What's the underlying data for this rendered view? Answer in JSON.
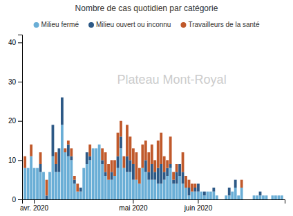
{
  "chart_data": {
    "type": "bar",
    "stacked": true,
    "title": "Nombre de cas quotidien par catégorie",
    "subtitle": "Plateau Mont-Royal",
    "legend": "top",
    "grid": false,
    "categories": [
      null,
      null,
      null,
      "avr. 2020",
      null,
      null,
      null,
      null,
      null,
      null,
      null,
      null,
      null,
      null,
      null,
      null,
      null,
      null,
      null,
      null,
      null,
      null,
      null,
      null,
      null,
      null,
      null,
      null,
      null,
      null,
      null,
      null,
      null,
      null,
      null,
      "mai 2020",
      null,
      null,
      null,
      null,
      null,
      null,
      null,
      null,
      null,
      null,
      null,
      null,
      null,
      null,
      null,
      null,
      null,
      null,
      null,
      null,
      "juin 2020",
      null,
      null,
      null,
      null,
      null,
      null,
      null,
      null,
      null,
      null,
      null,
      null,
      null,
      null,
      null,
      null,
      null,
      null,
      null,
      null,
      null,
      null,
      null,
      null,
      null,
      null,
      null
    ],
    "ylim": [
      0,
      42
    ],
    "yticks": [
      0,
      10,
      20,
      30,
      40
    ],
    "series": [
      {
        "name": "Milieu fermé",
        "color": "#6aaed6",
        "values": [
          8,
          8,
          11,
          8,
          8,
          7,
          7,
          0,
          7,
          11,
          7,
          7,
          19,
          12,
          11,
          10,
          4,
          2,
          2,
          8,
          9,
          10,
          13,
          13,
          14,
          9,
          6,
          5,
          5,
          6,
          8,
          13,
          8,
          7,
          7,
          5,
          5,
          4,
          8,
          7,
          5,
          5,
          5,
          4,
          4,
          5,
          6,
          8,
          4,
          4,
          6,
          4,
          3,
          1,
          2,
          2,
          2,
          2,
          1,
          2,
          2,
          2,
          1,
          0,
          0,
          1,
          1,
          2,
          3,
          1,
          3,
          0,
          0,
          0,
          1,
          1,
          1,
          1,
          1,
          0,
          1,
          1,
          1,
          1
        ]
      },
      {
        "name": "Milieu ouvert ou inconnu",
        "color": "#2d5986",
        "values": [
          0,
          0,
          0,
          0,
          0,
          2,
          0,
          1,
          0,
          8,
          2,
          6,
          7,
          0,
          3,
          1,
          1,
          0,
          1,
          0,
          3,
          1,
          0,
          0,
          0,
          1,
          1,
          0,
          2,
          0,
          3,
          3,
          0,
          4,
          3,
          4,
          0,
          0,
          0,
          3,
          2,
          4,
          2,
          4,
          5,
          2,
          2,
          1,
          1,
          3,
          3,
          3,
          0,
          2,
          0,
          1,
          2,
          0,
          1,
          0,
          0,
          1,
          0,
          0,
          0,
          0,
          2,
          0,
          2,
          0,
          0,
          0,
          0,
          0,
          0,
          0,
          1,
          0,
          0,
          0,
          0,
          0,
          0,
          0
        ]
      },
      {
        "name": "Travailleurs de la santé",
        "color": "#c0592b",
        "values": [
          3,
          0,
          3,
          0,
          0,
          3,
          0,
          4,
          0,
          0,
          3,
          0,
          0,
          1,
          1,
          2,
          1,
          2,
          0,
          0,
          0,
          3,
          0,
          0,
          0,
          3,
          5,
          4,
          3,
          4,
          6,
          4,
          3,
          8,
          6,
          4,
          7,
          4,
          6,
          5,
          5,
          5,
          3,
          7,
          8,
          4,
          2,
          7,
          2,
          2,
          0,
          5,
          3,
          2,
          2,
          1,
          0,
          0,
          0,
          0,
          0,
          0,
          0,
          0,
          0,
          0,
          0,
          0,
          0,
          0,
          2,
          0,
          0,
          0,
          0,
          0,
          0,
          0,
          0,
          0,
          0,
          0,
          0,
          0
        ]
      }
    ]
  }
}
